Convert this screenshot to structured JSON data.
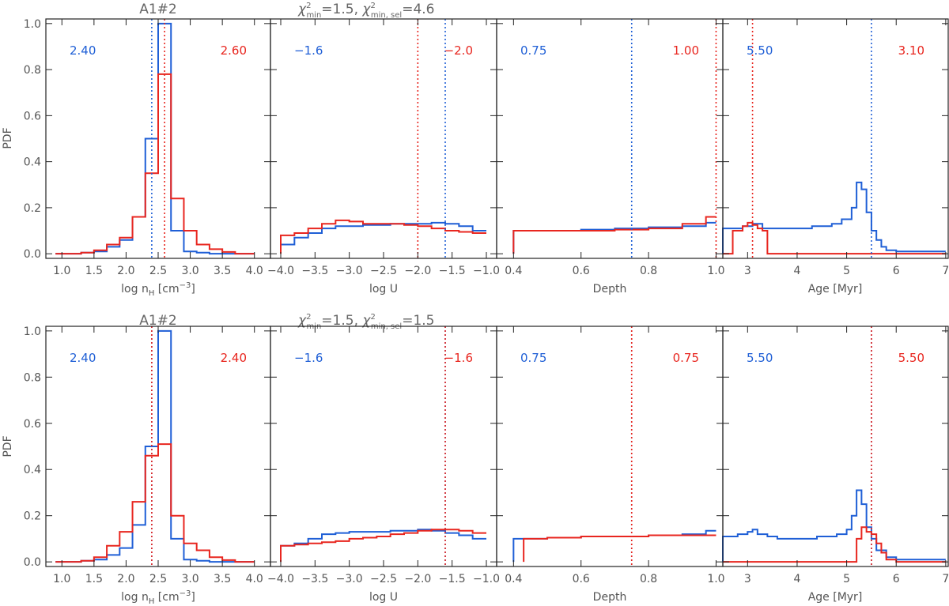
{
  "colors": {
    "blue": "#1f5fd6",
    "red": "#e8261f"
  },
  "titles": {
    "top": {
      "object": "A1#2",
      "chi_min": "1.5",
      "chi_sel": "4.6"
    },
    "bottom": {
      "object": "A1#2",
      "chi_min": "1.5",
      "chi_sel": "1.5"
    }
  },
  "labels": {
    "ylabel": "PDF",
    "chi_prefix": "χ",
    "chi_sup": "2",
    "chi_min_sub": "min",
    "chi_sel_sub": "min, sel",
    "xlabels": {
      "nh": {
        "base": "log n",
        "sub": "H",
        "unit_open": " [cm",
        "unit_sup": "−3",
        "unit_close": "]"
      },
      "logu": "log U",
      "depth": "Depth",
      "age": "Age [Myr]"
    }
  },
  "axes": {
    "ylim": [
      -0.02,
      1.02
    ],
    "yticks": [
      "0.0",
      "0.2",
      "0.4",
      "0.6",
      "0.8",
      "1.0"
    ],
    "nh": {
      "xlim": [
        0.75,
        4.25
      ],
      "ticks": [
        "1.0",
        "1.5",
        "2.0",
        "2.5",
        "3.0",
        "3.5",
        "4.0"
      ]
    },
    "logu": {
      "xlim": [
        -4.15,
        -0.85
      ],
      "ticks": [
        "−4.0",
        "−3.5",
        "−3.0",
        "−2.5",
        "−2.0",
        "−1.5",
        "−1.0"
      ]
    },
    "depth": {
      "xlim": [
        0.35,
        1.02
      ],
      "ticks": [
        "0.4",
        "0.6",
        "0.8",
        "1.0"
      ]
    },
    "age": {
      "xlim": [
        2.5,
        7.05
      ],
      "ticks": [
        "3",
        "4",
        "5",
        "6",
        "7"
      ]
    }
  },
  "chart_data": [
    {
      "type": "line",
      "row": "top",
      "panel": "nh",
      "title": "A1#2",
      "xlabel": "log nH [cm−3]",
      "ylabel": "PDF",
      "annotations": {
        "blue": "2.40",
        "red": "2.60"
      },
      "vlines": {
        "blue": 2.4,
        "red": 2.6
      },
      "series": [
        {
          "color": "blue",
          "edges": [
            0.9,
            1.1,
            1.3,
            1.5,
            1.7,
            1.9,
            2.1,
            2.3,
            2.5,
            2.7,
            2.9,
            3.1,
            3.3,
            3.5,
            3.7,
            3.9,
            4.0
          ],
          "values": [
            0,
            0,
            0.005,
            0.01,
            0.03,
            0.06,
            0.16,
            0.5,
            1.0,
            0.1,
            0.01,
            0.005,
            0,
            0,
            0,
            0
          ]
        },
        {
          "color": "red",
          "edges": [
            0.9,
            1.1,
            1.3,
            1.5,
            1.7,
            1.9,
            2.1,
            2.3,
            2.5,
            2.7,
            2.9,
            3.1,
            3.3,
            3.5,
            3.7,
            3.9,
            4.0
          ],
          "values": [
            0,
            0,
            0.005,
            0.015,
            0.04,
            0.07,
            0.16,
            0.35,
            0.78,
            0.24,
            0.1,
            0.04,
            0.02,
            0.008,
            0,
            0
          ]
        }
      ]
    },
    {
      "type": "line",
      "row": "top",
      "panel": "logu",
      "xlabel": "log U",
      "annotations": {
        "blue": "−1.6",
        "red": "−2.0"
      },
      "vlines": {
        "blue": -1.6,
        "red": -2.0
      },
      "series": [
        {
          "color": "blue",
          "edges": [
            -4.0,
            -3.8,
            -3.6,
            -3.4,
            -3.2,
            -3.0,
            -2.8,
            -2.6,
            -2.4,
            -2.2,
            -2.0,
            -1.8,
            -1.6,
            -1.4,
            -1.2,
            -1.0
          ],
          "values": [
            0.04,
            0.07,
            0.09,
            0.11,
            0.12,
            0.12,
            0.125,
            0.125,
            0.13,
            0.13,
            0.13,
            0.135,
            0.13,
            0.12,
            0.1
          ]
        },
        {
          "color": "red",
          "edges": [
            -4.0,
            -3.8,
            -3.6,
            -3.4,
            -3.2,
            -3.0,
            -2.8,
            -2.6,
            -2.4,
            -2.2,
            -2.0,
            -1.8,
            -1.6,
            -1.4,
            -1.2,
            -1.0
          ],
          "values": [
            0.08,
            0.09,
            0.11,
            0.13,
            0.145,
            0.14,
            0.13,
            0.13,
            0.13,
            0.125,
            0.12,
            0.11,
            0.1,
            0.095,
            0.09
          ]
        }
      ]
    },
    {
      "type": "line",
      "row": "top",
      "panel": "depth",
      "xlabel": "Depth",
      "annotations": {
        "blue": "0.75",
        "red": "1.00"
      },
      "vlines": {
        "blue": 0.75,
        "red": 1.0
      },
      "series": [
        {
          "color": "blue",
          "edges": [
            0.4,
            0.5,
            0.6,
            0.7,
            0.8,
            0.9,
            0.97,
            1.0
          ],
          "values": [
            0.1,
            0.1,
            0.105,
            0.11,
            0.115,
            0.12,
            0.135
          ]
        },
        {
          "color": "red",
          "edges": [
            0.4,
            0.5,
            0.6,
            0.7,
            0.8,
            0.9,
            0.97,
            1.0
          ],
          "values": [
            0.1,
            0.1,
            0.1,
            0.105,
            0.11,
            0.13,
            0.16
          ]
        }
      ]
    },
    {
      "type": "line",
      "row": "top",
      "panel": "age",
      "xlabel": "Age [Myr]",
      "annotations": {
        "blue": "5.50",
        "red": "3.10"
      },
      "vlines": {
        "blue": 5.5,
        "red": 3.1
      },
      "series": [
        {
          "color": "blue",
          "edges": [
            2.5,
            2.9,
            3.1,
            3.3,
            3.5,
            4.3,
            4.7,
            4.9,
            5.1,
            5.2,
            5.3,
            5.4,
            5.5,
            5.6,
            5.7,
            5.8,
            6.0,
            7.0
          ],
          "values": [
            0.11,
            0.12,
            0.13,
            0.11,
            0.11,
            0.12,
            0.13,
            0.15,
            0.2,
            0.31,
            0.28,
            0.18,
            0.1,
            0.06,
            0.03,
            0.015,
            0.01
          ]
        },
        {
          "color": "red",
          "edges": [
            2.5,
            2.7,
            2.9,
            3.0,
            3.1,
            3.2,
            3.3,
            3.4,
            7.0
          ],
          "values": [
            0,
            0.1,
            0.12,
            0.135,
            0.125,
            0.11,
            0.1,
            0
          ]
        }
      ]
    },
    {
      "type": "line",
      "row": "bottom",
      "panel": "nh",
      "title": "A1#2",
      "xlabel": "log nH [cm−3]",
      "ylabel": "PDF",
      "annotations": {
        "blue": "2.40",
        "red": "2.40"
      },
      "vlines": {
        "blue": 2.4,
        "red": 2.4
      },
      "series": [
        {
          "color": "blue",
          "edges": [
            0.9,
            1.1,
            1.3,
            1.5,
            1.7,
            1.9,
            2.1,
            2.3,
            2.5,
            2.7,
            2.9,
            3.1,
            3.3,
            3.5,
            3.7,
            3.9,
            4.0
          ],
          "values": [
            0,
            0,
            0.005,
            0.01,
            0.03,
            0.06,
            0.16,
            0.5,
            1.0,
            0.1,
            0.01,
            0.005,
            0,
            0,
            0,
            0
          ]
        },
        {
          "color": "red",
          "edges": [
            0.9,
            1.1,
            1.3,
            1.5,
            1.7,
            1.9,
            2.1,
            2.3,
            2.5,
            2.7,
            2.9,
            3.1,
            3.3,
            3.5,
            3.7,
            3.9,
            4.0
          ],
          "values": [
            0,
            0,
            0.005,
            0.02,
            0.07,
            0.13,
            0.26,
            0.46,
            0.51,
            0.2,
            0.08,
            0.05,
            0.02,
            0.008,
            0,
            0
          ]
        }
      ]
    },
    {
      "type": "line",
      "row": "bottom",
      "panel": "logu",
      "xlabel": "log U",
      "annotations": {
        "blue": "−1.6",
        "red": "−1.6"
      },
      "vlines": {
        "blue": -1.6,
        "red": -1.6
      },
      "series": [
        {
          "color": "blue",
          "edges": [
            -4.0,
            -3.8,
            -3.6,
            -3.4,
            -3.2,
            -3.0,
            -2.8,
            -2.6,
            -2.4,
            -2.2,
            -2.0,
            -1.8,
            -1.6,
            -1.4,
            -1.2,
            -1.0
          ],
          "values": [
            0.07,
            0.08,
            0.1,
            0.12,
            0.125,
            0.13,
            0.13,
            0.13,
            0.135,
            0.135,
            0.14,
            0.135,
            0.125,
            0.115,
            0.1
          ]
        },
        {
          "color": "red",
          "edges": [
            -4.0,
            -3.8,
            -3.6,
            -3.4,
            -3.2,
            -3.0,
            -2.8,
            -2.6,
            -2.4,
            -2.2,
            -2.0,
            -1.8,
            -1.6,
            -1.4,
            -1.2,
            -1.0
          ],
          "values": [
            0.07,
            0.075,
            0.08,
            0.085,
            0.09,
            0.1,
            0.105,
            0.11,
            0.12,
            0.125,
            0.135,
            0.14,
            0.14,
            0.135,
            0.125
          ]
        }
      ]
    },
    {
      "type": "line",
      "row": "bottom",
      "panel": "depth",
      "xlabel": "Depth",
      "annotations": {
        "blue": "0.75",
        "red": "0.75"
      },
      "vlines": {
        "blue": 0.75,
        "red": 0.75
      },
      "series": [
        {
          "color": "blue",
          "edges": [
            0.4,
            0.5,
            0.6,
            0.7,
            0.8,
            0.9,
            0.97,
            1.0
          ],
          "values": [
            0.1,
            0.105,
            0.11,
            0.11,
            0.115,
            0.12,
            0.135
          ]
        },
        {
          "color": "red",
          "edges": [
            0.43,
            0.5,
            0.6,
            0.7,
            0.8,
            0.9,
            0.97,
            1.0
          ],
          "values": [
            0.1,
            0.105,
            0.11,
            0.11,
            0.115,
            0.115,
            0.115
          ]
        }
      ]
    },
    {
      "type": "line",
      "row": "bottom",
      "panel": "age",
      "xlabel": "Age [Myr]",
      "annotations": {
        "blue": "5.50",
        "red": "5.50"
      },
      "vlines": {
        "blue": 5.5,
        "red": 5.5
      },
      "series": [
        {
          "color": "blue",
          "edges": [
            2.5,
            2.8,
            3.0,
            3.1,
            3.2,
            3.4,
            3.6,
            3.8,
            4.0,
            4.4,
            4.8,
            5.0,
            5.1,
            5.2,
            5.3,
            5.4,
            5.5,
            5.6,
            5.8,
            6.0,
            7.0
          ],
          "values": [
            0.11,
            0.12,
            0.13,
            0.14,
            0.12,
            0.11,
            0.1,
            0.1,
            0.1,
            0.11,
            0.12,
            0.14,
            0.2,
            0.31,
            0.25,
            0.15,
            0.1,
            0.05,
            0.02,
            0.01
          ]
        },
        {
          "color": "red",
          "edges": [
            2.5,
            5.2,
            5.3,
            5.4,
            5.5,
            5.6,
            5.7,
            5.8,
            6.0,
            7.0
          ],
          "values": [
            0,
            0.1,
            0.15,
            0.13,
            0.12,
            0.08,
            0.04,
            0.01,
            0
          ]
        }
      ]
    }
  ]
}
